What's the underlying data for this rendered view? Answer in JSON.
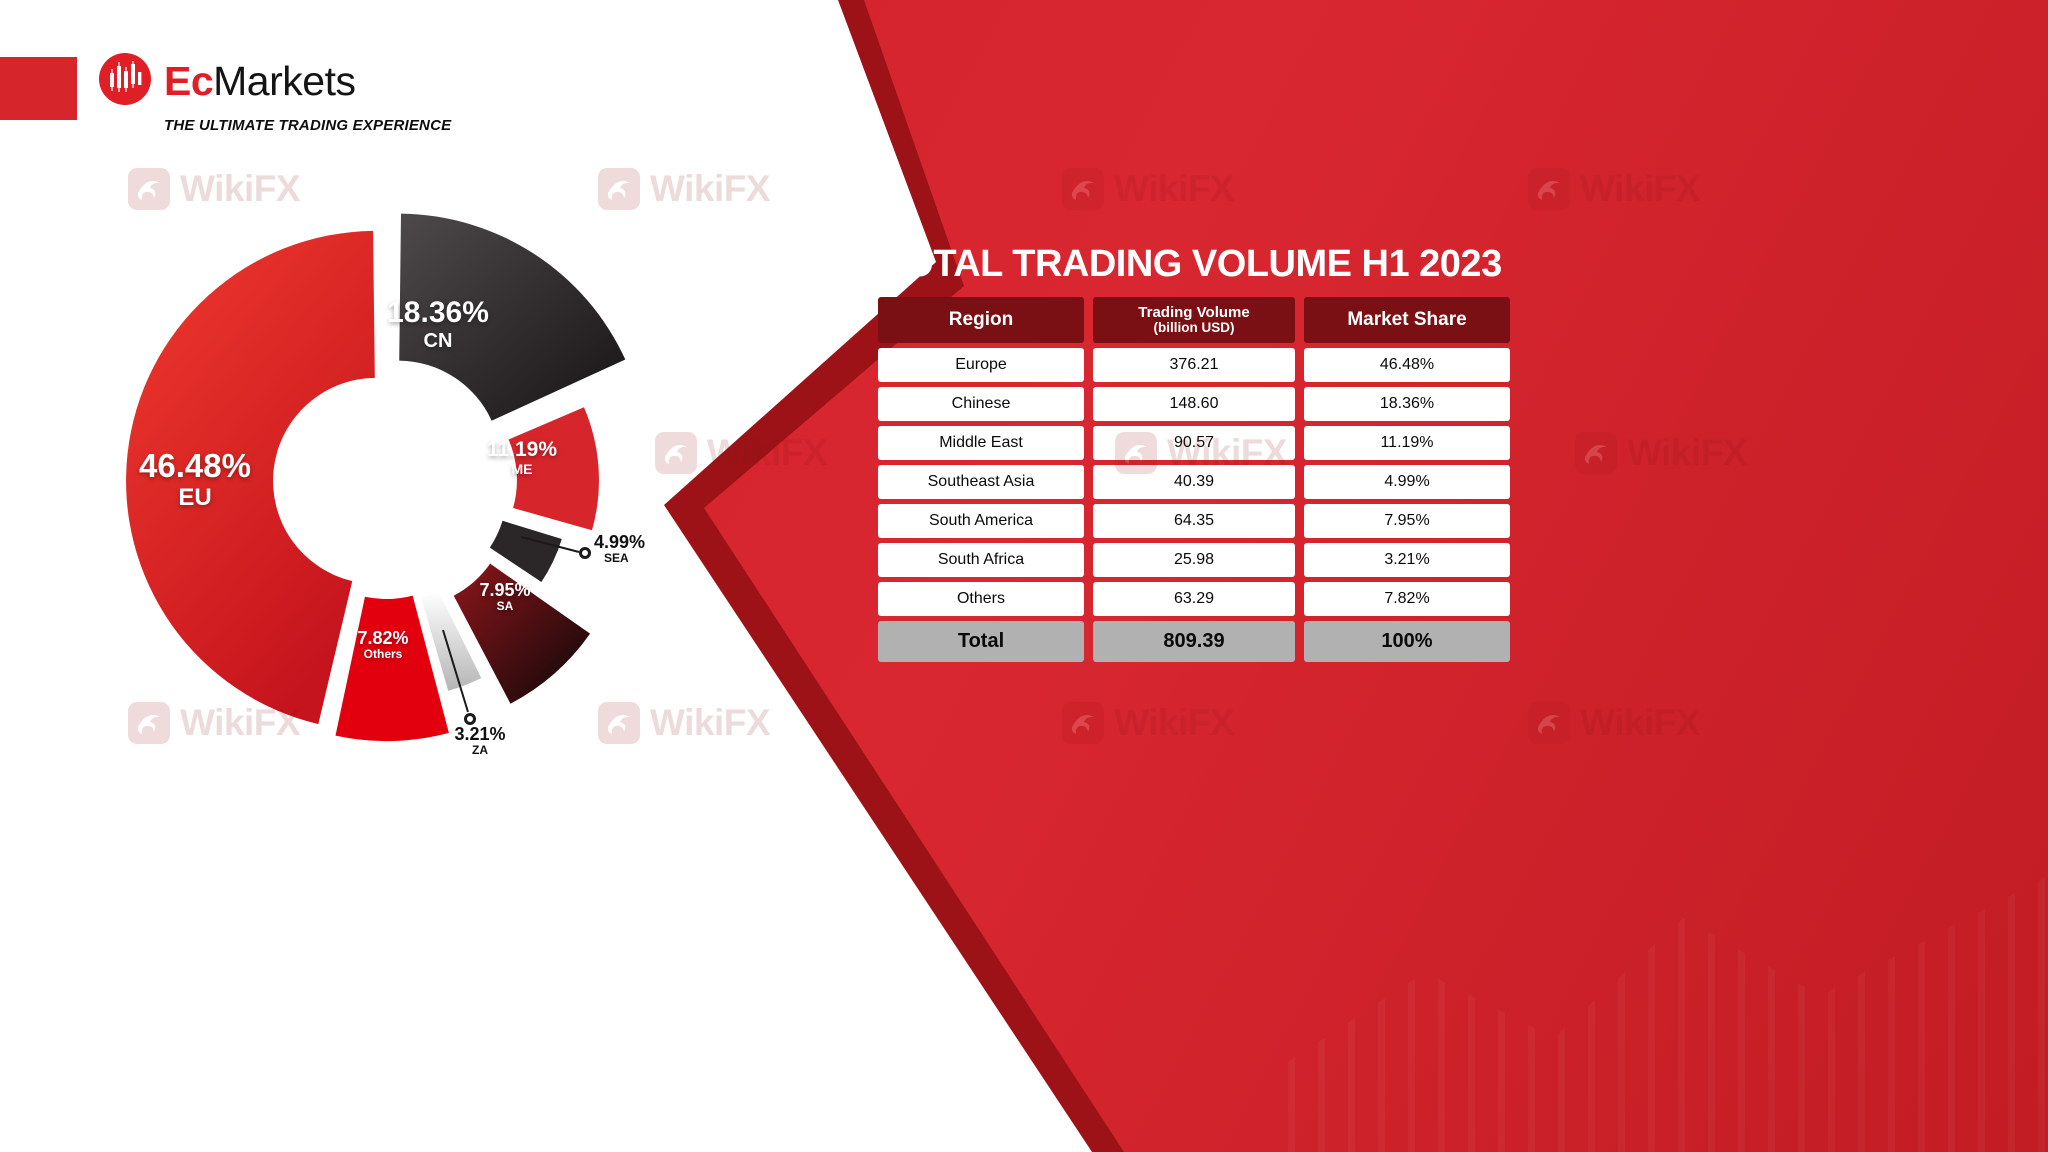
{
  "brand": {
    "logo_ec": "Ec",
    "logo_markets": "Markets",
    "tagline": "THE ULTIMATE TRADING EXPERIENCE"
  },
  "watermark": {
    "text": "WikiFX"
  },
  "panel": {
    "title": "TOTAL TRADING VOLUME H1 2023"
  },
  "table": {
    "headers": {
      "region": "Region",
      "volume_line1": "Trading Volume",
      "volume_line2": "(billion USD)",
      "share": "Market Share"
    },
    "rows": [
      {
        "region": "Europe",
        "volume": "376.21",
        "share": "46.48%"
      },
      {
        "region": "Chinese",
        "volume": "148.60",
        "share": "18.36%"
      },
      {
        "region": "Middle East",
        "volume": "90.57",
        "share": "11.19%"
      },
      {
        "region": "Southeast Asia",
        "volume": "40.39",
        "share": "4.99%"
      },
      {
        "region": "South America",
        "volume": "64.35",
        "share": "7.95%"
      },
      {
        "region": "South Africa",
        "volume": "25.98",
        "share": "3.21%"
      },
      {
        "region": "Others",
        "volume": "63.29",
        "share": "7.82%"
      }
    ],
    "total": {
      "label": "Total",
      "volume": "809.39",
      "share": "100%"
    }
  },
  "chart_data": {
    "type": "pie",
    "variant": "exploded-donut",
    "title": "TOTAL TRADING VOLUME H1 2023",
    "legend_position": "labels-on-segments",
    "start_angle_deg": -90,
    "direction": "clockwise",
    "segments": [
      {
        "label": "CN",
        "region": "Chinese",
        "pct": 18.36,
        "pct_text": "18.36%",
        "volume_billion_usd": 148.6,
        "color": "#332e2f"
      },
      {
        "label": "ME",
        "region": "Middle East",
        "pct": 11.19,
        "pct_text": "11.19%",
        "volume_billion_usd": 90.57,
        "color": "#d6252b"
      },
      {
        "label": "SEA",
        "region": "Southeast Asia",
        "pct": 4.99,
        "pct_text": "4.99%",
        "volume_billion_usd": 40.39,
        "color": "#2b2627"
      },
      {
        "label": "SA",
        "region": "South America",
        "pct": 7.95,
        "pct_text": "7.95%",
        "volume_billion_usd": 64.35,
        "color": "#4f0c10"
      },
      {
        "label": "ZA",
        "region": "South Africa",
        "pct": 3.21,
        "pct_text": "3.21%",
        "volume_billion_usd": 25.98,
        "color": "#e3e3e3"
      },
      {
        "label": "Others",
        "region": "Others",
        "pct": 7.82,
        "pct_text": "7.82%",
        "volume_billion_usd": 63.29,
        "color": "#e2000f"
      },
      {
        "label": "EU",
        "region": "Europe",
        "pct": 46.48,
        "pct_text": "46.48%",
        "volume_billion_usd": 376.21,
        "color": "#de2128"
      }
    ],
    "total": {
      "volume_billion_usd": 809.39,
      "share_text": "100%"
    },
    "colors": {
      "panel_red": "#d6232c",
      "panel_rim_dark_red": "#9c1217",
      "table_header_maroon": "#7a1014",
      "table_total_gray": "#b1b1b1",
      "brand_red": "#e01e25"
    }
  }
}
